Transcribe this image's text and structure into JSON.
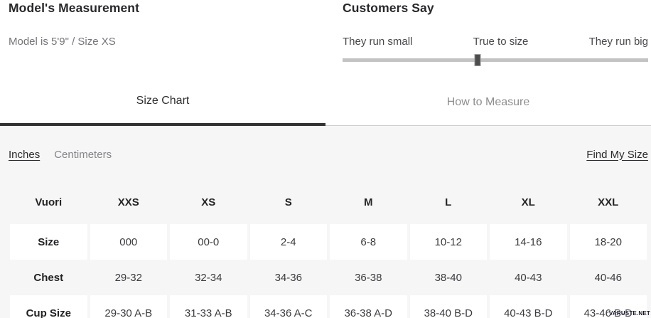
{
  "model_measurement": {
    "title": "Model's Measurement",
    "detail": "Model is 5'9\" / Size XS"
  },
  "customers_say": {
    "title": "Customers Say",
    "labels": {
      "left": "They run small",
      "center": "True to size",
      "right": "They run big"
    },
    "slider_position_percent": 44.3
  },
  "tabs": {
    "size_chart": "Size Chart",
    "how_to_measure": "How to Measure",
    "active_tab": "Size Chart"
  },
  "unit_toggle": {
    "inches": "Inches",
    "centimeters": "Centimeters",
    "selected": "Inches"
  },
  "find_my_size_label": "Find My Size",
  "size_chart": {
    "columns": [
      "Vuori",
      "XXS",
      "XS",
      "S",
      "M",
      "L",
      "XL",
      "XXL"
    ],
    "rows": [
      {
        "label": "Size",
        "values": [
          "000",
          "00-0",
          "2-4",
          "6-8",
          "10-12",
          "14-16",
          "18-20"
        ]
      },
      {
        "label": "Chest",
        "values": [
          "29-32",
          "32-34",
          "34-36",
          "36-38",
          "38-40",
          "40-43",
          "40-46"
        ]
      },
      {
        "label": "Cup Size",
        "values": [
          "29-30 A-B",
          "31-33 A-B",
          "34-36 A-C",
          "36-38 A-D",
          "38-40 B-D",
          "40-43 B-D",
          "43-46 B-D"
        ]
      }
    ]
  },
  "watermark": "VARUSTE.NET",
  "colors": {
    "dark_text": "#28282b",
    "muted_text": "#75757a",
    "inactive_tab_text": "#8e8e90",
    "panel_bg": "#f6f6f6",
    "cell_bg": "#ffffff",
    "slider_track": "#c3c3c3",
    "slider_handle": "#4c4c4c",
    "tab_active_underline": "#333333"
  }
}
